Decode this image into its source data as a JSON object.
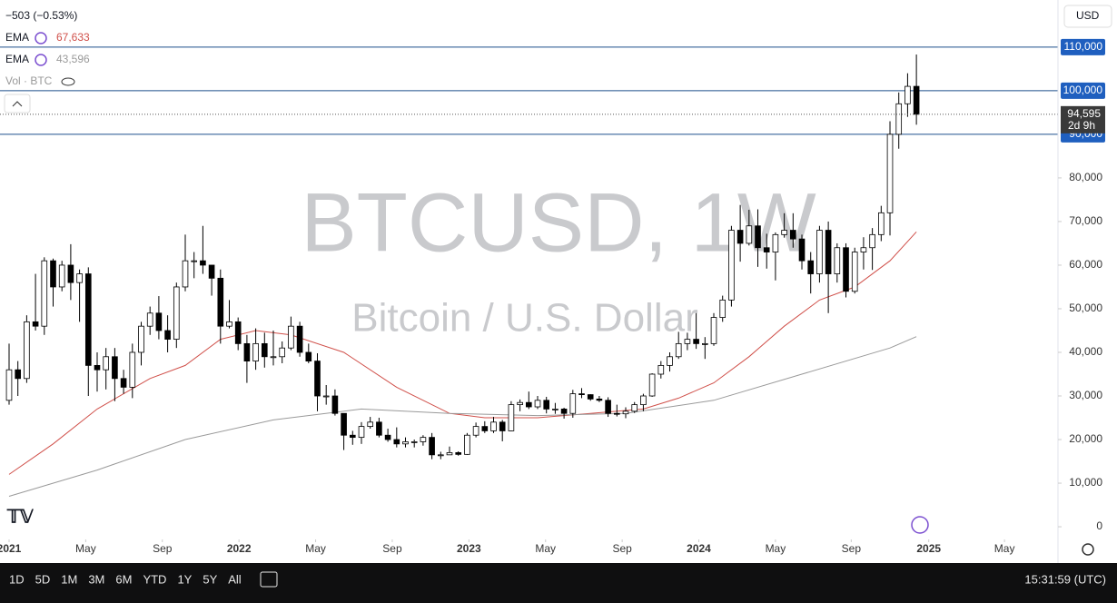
{
  "chart_data": {
    "type": "candlestick",
    "title": "BTCUSD, 1W",
    "subtitle": "Bitcoin / U.S. Dollar",
    "change": "−503 (−0.53%)",
    "volume_label": "Vol · BTC",
    "currency": "USD",
    "timeframes": [
      "1D",
      "5D",
      "1M",
      "3M",
      "6M",
      "YTD",
      "1Y",
      "5Y",
      "All"
    ],
    "clock": "15:31:59 (UTC)",
    "price_label": "94,595",
    "countdown": "2d 9h",
    "up_color": "#ffffff",
    "down_color": "#000000",
    "candles": {
      "open": [
        29000,
        36000,
        34000,
        47000,
        46000,
        61000,
        55000,
        60000,
        56000,
        58000,
        37000,
        36000,
        39000,
        34000,
        32000,
        40000,
        46000,
        49000,
        45000,
        43000,
        55000,
        61000,
        61000,
        60000,
        57000,
        46000,
        47000,
        42000,
        38000,
        42000,
        39000,
        39000,
        41000,
        46000,
        40000,
        38000,
        30000,
        30000,
        26000,
        21000,
        20500,
        23000,
        24000,
        21000,
        20000,
        19000,
        19500,
        19500,
        20500,
        16500,
        16500,
        17000,
        16600,
        21000,
        23000,
        22000,
        24000,
        22000,
        28000,
        28500,
        27500,
        29000,
        27000,
        27000,
        26000,
        30500,
        30300,
        29300,
        29000,
        26000,
        25900,
        26500,
        28000,
        30000,
        35000,
        37000,
        39000,
        42000,
        43000,
        42000,
        42000,
        48000,
        52000,
        68000,
        65000,
        69000,
        64000,
        63000,
        67000,
        68000,
        66000,
        61000,
        58000,
        68000,
        58000,
        64000,
        54000,
        63000,
        64000,
        67000,
        72000,
        90000,
        97000,
        101000
      ],
      "high": [
        42000,
        38000,
        48500,
        58000,
        61800,
        61500,
        61000,
        64800,
        59000,
        59500,
        40000,
        41000,
        41000,
        36000,
        42000,
        47000,
        50500,
        52900,
        48500,
        56000,
        67000,
        63000,
        69000,
        60000,
        59000,
        52000,
        48000,
        44000,
        45500,
        44500,
        45000,
        42500,
        48200,
        47000,
        42000,
        39800,
        32500,
        31500,
        26000,
        22000,
        24000,
        25200,
        25000,
        22500,
        22800,
        20500,
        20000,
        21000,
        21500,
        17200,
        18400,
        17300,
        21500,
        23900,
        24200,
        25200,
        24500,
        28800,
        29200,
        31000,
        30000,
        29800,
        28400,
        27300,
        31400,
        31800,
        30400,
        30000,
        29700,
        28000,
        27400,
        28600,
        30500,
        35200,
        38000,
        40000,
        44700,
        44500,
        49000,
        43500,
        49000,
        53000,
        69000,
        73800,
        72700,
        72800,
        67200,
        67500,
        71900,
        71900,
        67000,
        63000,
        69000,
        70000,
        65000,
        65000,
        64000,
        66400,
        68500,
        73600,
        93000,
        99600,
        104000,
        108300
      ],
      "low": [
        28000,
        30000,
        33000,
        45000,
        44000,
        50500,
        54000,
        52000,
        47000,
        30000,
        31000,
        31500,
        28800,
        30500,
        29500,
        37000,
        44000,
        43000,
        40000,
        41000,
        54000,
        57000,
        58000,
        53000,
        42000,
        45500,
        40500,
        33000,
        36000,
        36500,
        37000,
        37500,
        40500,
        39000,
        37500,
        26500,
        28000,
        25500,
        17600,
        18800,
        19000,
        22500,
        20500,
        19500,
        18200,
        18200,
        18200,
        18600,
        15500,
        15500,
        16500,
        16300,
        16500,
        20500,
        21500,
        21500,
        19600,
        21900,
        26500,
        27000,
        27000,
        26000,
        25900,
        24800,
        25000,
        29500,
        28900,
        28600,
        25200,
        25300,
        24900,
        26100,
        26500,
        29800,
        34000,
        35600,
        38500,
        40500,
        40800,
        38500,
        41500,
        47000,
        50500,
        60800,
        64500,
        59600,
        59200,
        56500,
        66300,
        64000,
        59000,
        53500,
        56000,
        49000,
        56000,
        52600,
        53500,
        59000,
        58900,
        65500,
        66800,
        86700,
        94000,
        92200
      ],
      "close": [
        36000,
        34000,
        47000,
        46000,
        61000,
        55000,
        60000,
        56000,
        58000,
        37000,
        36000,
        39000,
        34000,
        32000,
        40000,
        46000,
        49000,
        45000,
        43000,
        55000,
        61000,
        61000,
        60000,
        57000,
        46000,
        47000,
        42000,
        38000,
        42000,
        39000,
        39000,
        41000,
        46000,
        40000,
        38000,
        30000,
        30000,
        26000,
        21000,
        20500,
        23000,
        24000,
        21000,
        20000,
        19000,
        19500,
        19500,
        20500,
        16500,
        16500,
        17000,
        16600,
        21000,
        23000,
        22000,
        24000,
        22000,
        28000,
        28500,
        27500,
        29000,
        27000,
        27000,
        26000,
        30500,
        30300,
        29300,
        29000,
        26000,
        25900,
        26500,
        28000,
        30000,
        35000,
        37000,
        39000,
        42000,
        43000,
        42000,
        42000,
        48000,
        52000,
        68000,
        65000,
        69000,
        64000,
        63000,
        67000,
        68000,
        66000,
        61000,
        58000,
        68000,
        58000,
        64000,
        54000,
        63000,
        64000,
        67000,
        72000,
        90000,
        97000,
        101000,
        94595
      ]
    },
    "series": [
      {
        "name": "EMA",
        "color": "#d0504a",
        "value_label": "67,633",
        "x": [
          0,
          5,
          10,
          16,
          20,
          24,
          28,
          32,
          38,
          44,
          50,
          54,
          60,
          66,
          72,
          76,
          80,
          84,
          88,
          92,
          96,
          100,
          103
        ],
        "values": [
          12000,
          19000,
          27000,
          34000,
          37000,
          43000,
          45000,
          44000,
          40000,
          32000,
          26000,
          25000,
          25000,
          26000,
          27000,
          29500,
          33000,
          39000,
          46000,
          52000,
          55000,
          61000,
          67633
        ]
      },
      {
        "name": "EMA",
        "color": "#9a9a9a",
        "value_label": "43,596",
        "x": [
          0,
          10,
          20,
          30,
          40,
          50,
          60,
          70,
          80,
          90,
          100,
          103
        ],
        "values": [
          7000,
          13000,
          20000,
          24500,
          27000,
          26000,
          25500,
          26000,
          29000,
          35000,
          41000,
          43596
        ]
      }
    ],
    "xlim": [
      -1.03,
      119.07
    ],
    "xticks": [
      {
        "value": 0,
        "label": "2021"
      },
      {
        "value": 8.7,
        "label": "May"
      },
      {
        "value": 17.4,
        "label": "Sep"
      },
      {
        "value": 26.1,
        "label": "2022"
      },
      {
        "value": 34.8,
        "label": "May"
      },
      {
        "value": 43.5,
        "label": "Sep"
      },
      {
        "value": 52.2,
        "label": "2023"
      },
      {
        "value": 60.9,
        "label": "May"
      },
      {
        "value": 69.6,
        "label": "Sep"
      },
      {
        "value": 78.3,
        "label": "2024"
      },
      {
        "value": 87,
        "label": "May"
      },
      {
        "value": 95.6,
        "label": "Sep"
      },
      {
        "value": 104.4,
        "label": "2025"
      },
      {
        "value": 113,
        "label": "May"
      }
    ],
    "ylim": [
      -7900,
      120800
    ],
    "yticks": [
      0,
      {
        "value": 10000,
        "label": "10,000"
      },
      {
        "value": 20000,
        "label": "20,000"
      },
      {
        "value": 30000,
        "label": "30,000"
      },
      {
        "value": 40000,
        "label": "40,000"
      },
      {
        "value": 50000,
        "label": "50,000"
      },
      {
        "value": 60000,
        "label": "60,000"
      },
      {
        "value": 70000,
        "label": "70,000"
      },
      {
        "value": 80000,
        "label": "80,000"
      },
      {
        "value": 90000,
        "label": "90,000",
        "highlight": true
      },
      {
        "value": 100000,
        "label": "100,000",
        "highlight": true
      },
      {
        "value": 110000,
        "label": "110,000",
        "highlight": true
      }
    ]
  }
}
